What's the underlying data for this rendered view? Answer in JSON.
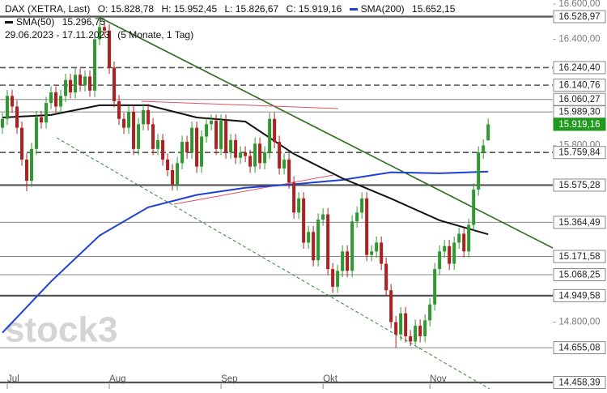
{
  "chart_data": {
    "type": "candlestick",
    "watermark": "stock3",
    "header": {
      "instrument": "DAX (XETRA, Last)",
      "ohlc": [
        "O: 15.828,78",
        "H: 15.952,45",
        "L: 15.826,67",
        "C: 15.919,16"
      ],
      "range": "29.06.2023 - 17.11.2023",
      "period": "(5 Monate, 1 Tag)"
    },
    "up_color": "#2e9a2e",
    "down_color": "#b0201e",
    "xlim": [
      -0.5,
      113.3
    ],
    "ylim": [
      14421.7,
      16622.9
    ],
    "xticks": [
      {
        "value": 1,
        "label": "Jul"
      },
      {
        "value": 22,
        "label": "Aug"
      },
      {
        "value": 45,
        "label": "Sep"
      },
      {
        "value": 66,
        "label": "Okt"
      },
      {
        "value": 88,
        "label": "Nov"
      }
    ],
    "yticks": [
      {
        "value": 16600,
        "label": "16.600,00"
      },
      {
        "value": 16400,
        "label": "16.400,00"
      },
      {
        "value": 15800,
        "label": "15.800,00"
      },
      {
        "value": 14800,
        "label": "14.800,00"
      }
    ],
    "open": [
      15900,
      15950,
      16080,
      16020,
      15900,
      15720,
      15600,
      15780,
      15960,
      15930,
      16040,
      16100,
      16020,
      16080,
      16170,
      16100,
      16200,
      16140,
      16190,
      16110,
      16400,
      16470,
      16450,
      16240,
      16050,
      15950,
      15900,
      15990,
      15780,
      15920,
      16000,
      15920,
      15780,
      15830,
      15720,
      15660,
      15580,
      15700,
      15820,
      15760,
      15900,
      15680,
      15850,
      15920,
      15940,
      15780,
      15940,
      15760,
      15830,
      15730,
      15760,
      15740,
      15680,
      15810,
      15700,
      15760,
      15950,
      15820,
      15670,
      15720,
      15590,
      15420,
      15500,
      15250,
      15310,
      15150,
      15380,
      15410,
      15100,
      15000,
      15090,
      15200,
      15090,
      15370,
      15420,
      15500,
      15180,
      15200,
      15250,
      15130,
      14980,
      14800,
      14730,
      14850,
      14720,
      14690,
      14780,
      14720,
      14810,
      14900,
      15100,
      15200,
      15230,
      15130,
      15250,
      15300,
      15200,
      15350,
      15550,
      15760,
      15828.78
    ],
    "high": [
      15985,
      16115,
      16115,
      16055,
      15935,
      15755,
      15815,
      15995,
      15995,
      16075,
      16135,
      16135,
      16115,
      16205,
      16205,
      16235,
      16235,
      16225,
      16225,
      16435,
      16528.97,
      16505,
      16485,
      16275,
      16085,
      15985,
      16025,
      16025,
      15955,
      16035,
      16035,
      15955,
      15865,
      15865,
      15755,
      15695,
      15735,
      15855,
      15855,
      15935,
      15935,
      15885,
      15955,
      15975,
      15975,
      15975,
      15975,
      15865,
      15865,
      15795,
      15795,
      15775,
      15845,
      15845,
      15795,
      15985,
      15985,
      15855,
      15755,
      15755,
      15625,
      15535,
      15535,
      15345,
      15345,
      15415,
      15445,
      15445,
      15135,
      15125,
      15235,
      15235,
      15405,
      15455,
      15535,
      15535,
      15235,
      15285,
      15285,
      15165,
      15015,
      14835,
      14885,
      14885,
      14755,
      14815,
      14815,
      14845,
      14935,
      15135,
      15235,
      15265,
      15265,
      15285,
      15335,
      15335,
      15385,
      15585,
      15795,
      15835,
      15952.45
    ],
    "low": [
      15865,
      15915,
      15985,
      15865,
      15685,
      15540,
      15565,
      15745,
      15895,
      15895,
      16005,
      15985,
      15985,
      16045,
      16065,
      16065,
      16105,
      16105,
      16075,
      16075,
      16365,
      16415,
      16205,
      16015,
      15915,
      15865,
      15865,
      15745,
      15745,
      15885,
      15885,
      15745,
      15745,
      15685,
      15625,
      15545,
      15545,
      15665,
      15725,
      15725,
      15645,
      15645,
      15815,
      15885,
      15745,
      15745,
      15725,
      15725,
      15695,
      15695,
      15705,
      15645,
      15645,
      15665,
      15665,
      15725,
      15785,
      15635,
      15635,
      15555,
      15385,
      15385,
      15215,
      15215,
      15115,
      15115,
      15345,
      15065,
      14965,
      14965,
      15055,
      15055,
      15055,
      15335,
      15385,
      15145,
      15145,
      15165,
      15095,
      14945,
      14765,
      14655.08,
      14695,
      14685,
      14665,
      14670,
      14685,
      14685,
      14775,
      14865,
      15065,
      15165,
      15095,
      15095,
      15215,
      15165,
      15165,
      15315,
      15515,
      15725,
      15826.67
    ],
    "close": [
      15950,
      16080,
      16020,
      15900,
      15720,
      15600,
      15780,
      15960,
      15930,
      16040,
      16100,
      16020,
      16080,
      16170,
      16100,
      16200,
      16140,
      16190,
      16110,
      16400,
      16470,
      16450,
      16240,
      16050,
      15950,
      15900,
      15990,
      15780,
      15920,
      16000,
      15920,
      15780,
      15830,
      15720,
      15660,
      15580,
      15700,
      15820,
      15760,
      15900,
      15680,
      15850,
      15920,
      15940,
      15780,
      15940,
      15760,
      15830,
      15730,
      15760,
      15740,
      15680,
      15810,
      15700,
      15760,
      15950,
      15820,
      15670,
      15720,
      15590,
      15420,
      15500,
      15250,
      15310,
      15150,
      15380,
      15410,
      15100,
      15000,
      15090,
      15200,
      15090,
      15370,
      15420,
      15500,
      15180,
      15200,
      15250,
      15130,
      14980,
      14800,
      14730,
      14850,
      14720,
      14690,
      14780,
      14720,
      14810,
      14900,
      15100,
      15200,
      15230,
      15130,
      15250,
      15300,
      15200,
      15350,
      15550,
      15760,
      15800,
      15919.16
    ],
    "series": [
      {
        "name": "SMA(200)",
        "color": "#1f3fd6",
        "last_label": "15.652,15",
        "x": [
          0,
          10,
          20,
          30,
          40,
          50,
          60,
          70,
          80,
          90,
          100
        ],
        "values": [
          14740,
          15030,
          15290,
          15450,
          15520,
          15560,
          15580,
          15605,
          15648,
          15642,
          15652.15
        ]
      },
      {
        "name": "SMA(50)",
        "color": "#111111",
        "last_label": "15.296,75",
        "x": [
          0,
          10,
          20,
          30,
          40,
          50,
          60,
          70,
          80,
          90,
          100
        ],
        "values": [
          15958,
          15972,
          16027,
          16027,
          15958,
          15935,
          15752,
          15614,
          15499,
          15376,
          15296.75
        ]
      }
    ],
    "levels": [
      {
        "value": 16528.97,
        "label": "16.528,97",
        "style": "bold"
      },
      {
        "value": 16240.4,
        "label": "16.240,40",
        "style": "dashed"
      },
      {
        "value": 16140.76,
        "label": "16.140,76",
        "style": "dashed"
      },
      {
        "value": 16060.27,
        "label": "16.060,27",
        "style": "solid"
      },
      {
        "value": 15989.3,
        "label": "15.989,30",
        "style": "solid"
      },
      {
        "value": 15919.16,
        "label": "15.919,16",
        "style": "current"
      },
      {
        "value": 15759.84,
        "label": "15.759,84",
        "style": "dashed"
      },
      {
        "value": 15575.28,
        "label": "15.575,28",
        "style": "bold"
      },
      {
        "value": 15364.49,
        "label": "15.364,49",
        "style": "solid"
      },
      {
        "value": 15171.58,
        "label": "15.171,58",
        "style": "solid"
      },
      {
        "value": 15068.25,
        "label": "15.068,25",
        "style": "solid"
      },
      {
        "value": 14949.58,
        "label": "14.949,58",
        "style": "bold"
      },
      {
        "value": 14655.08,
        "label": "14.655,08",
        "style": "solid"
      },
      {
        "value": 14458.39,
        "label": "14.458,39",
        "style": "bold"
      }
    ]
  }
}
